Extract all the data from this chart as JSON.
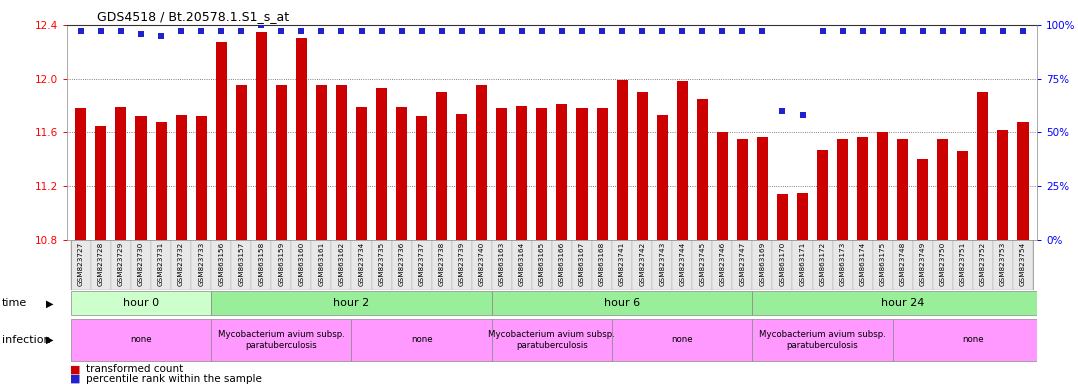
{
  "title": "GDS4518 / Bt.20578.1.S1_s_at",
  "samples": [
    "GSM823727",
    "GSM823728",
    "GSM823729",
    "GSM823730",
    "GSM823731",
    "GSM823732",
    "GSM823733",
    "GSM863156",
    "GSM863157",
    "GSM863158",
    "GSM863159",
    "GSM863160",
    "GSM863161",
    "GSM863162",
    "GSM823734",
    "GSM823735",
    "GSM823736",
    "GSM823737",
    "GSM823738",
    "GSM823739",
    "GSM823740",
    "GSM863163",
    "GSM863164",
    "GSM863165",
    "GSM863166",
    "GSM863167",
    "GSM863168",
    "GSM823741",
    "GSM823742",
    "GSM823743",
    "GSM823744",
    "GSM823745",
    "GSM823746",
    "GSM823747",
    "GSM863169",
    "GSM863170",
    "GSM863171",
    "GSM863172",
    "GSM863173",
    "GSM863174",
    "GSM863175",
    "GSM823748",
    "GSM823749",
    "GSM823750",
    "GSM823751",
    "GSM823752",
    "GSM823753",
    "GSM823754"
  ],
  "bar_values": [
    11.78,
    11.65,
    11.79,
    11.72,
    11.68,
    11.73,
    11.72,
    12.27,
    11.95,
    12.35,
    11.95,
    12.3,
    11.95,
    11.95,
    11.79,
    11.93,
    11.79,
    11.72,
    11.9,
    11.74,
    11.95,
    11.78,
    11.8,
    11.78,
    11.81,
    11.78,
    11.78,
    11.99,
    11.9,
    11.73,
    11.98,
    11.85,
    11.6,
    11.55,
    11.57,
    11.14,
    11.15,
    11.47,
    11.55,
    11.57,
    11.6,
    11.55,
    11.4,
    11.55,
    11.46,
    11.9,
    11.62,
    11.68
  ],
  "percentile_values": [
    97,
    97,
    97,
    96,
    95,
    97,
    97,
    97,
    97,
    100,
    97,
    97,
    97,
    97,
    97,
    97,
    97,
    97,
    97,
    97,
    97,
    97,
    97,
    97,
    97,
    97,
    97,
    97,
    97,
    97,
    97,
    97,
    97,
    97,
    97,
    60,
    58,
    97,
    97,
    97,
    97,
    97,
    97,
    97,
    97,
    97,
    97,
    97
  ],
  "ylim_left": [
    10.8,
    12.4
  ],
  "ylim_right": [
    0,
    100
  ],
  "yticks_left": [
    10.8,
    11.2,
    11.6,
    12.0,
    12.4
  ],
  "yticks_right": [
    0,
    25,
    50,
    75,
    100
  ],
  "bar_color": "#cc0000",
  "dot_color": "#2222cc",
  "background_color": "#ffffff",
  "time_groups": [
    {
      "label": "hour 0",
      "start": 0,
      "end": 7,
      "color": "#ccffcc"
    },
    {
      "label": "hour 2",
      "start": 7,
      "end": 21,
      "color": "#99ee99"
    },
    {
      "label": "hour 6",
      "start": 21,
      "end": 34,
      "color": "#99ee99"
    },
    {
      "label": "hour 24",
      "start": 34,
      "end": 49,
      "color": "#99ee99"
    }
  ],
  "infection_groups": [
    {
      "label": "none",
      "start": 0,
      "end": 7
    },
    {
      "label": "Mycobacterium avium subsp.\nparatuberculosis",
      "start": 7,
      "end": 14
    },
    {
      "label": "none",
      "start": 14,
      "end": 21
    },
    {
      "label": "Mycobacterium avium subsp.\nparatuberculosis",
      "start": 21,
      "end": 27
    },
    {
      "label": "none",
      "start": 27,
      "end": 34
    },
    {
      "label": "Mycobacterium avium subsp.\nparatuberculosis",
      "start": 34,
      "end": 41
    },
    {
      "label": "none",
      "start": 41,
      "end": 49
    }
  ],
  "dotted_line_values": [
    11.2,
    11.6,
    12.0
  ],
  "bar_width": 0.55
}
